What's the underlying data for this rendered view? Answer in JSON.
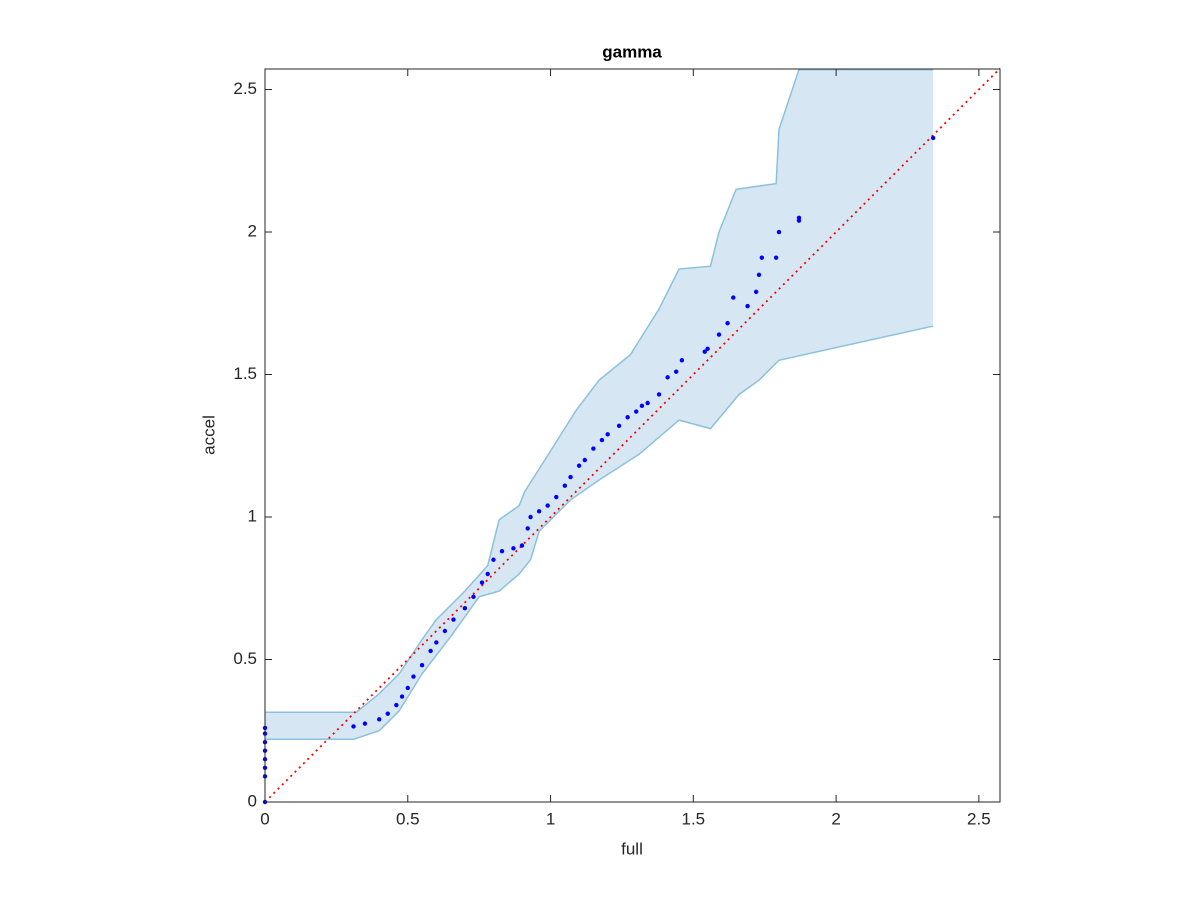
{
  "chart_data": {
    "type": "scatter",
    "title": "gamma",
    "x_label": "full",
    "y_label": "accel",
    "xlim": [
      0,
      2.574
    ],
    "ylim": [
      0,
      2.572
    ],
    "xticks": [
      0,
      0.5,
      1,
      1.5,
      2,
      2.5
    ],
    "yticks": [
      0,
      0.5,
      1,
      1.5,
      2,
      2.5
    ],
    "band_color": "#d6e7f3",
    "band_edge_color": "#8cc0dc",
    "band_upper": {
      "x": [
        0,
        0.32,
        0.4,
        0.47,
        0.55,
        0.6,
        0.7,
        0.78,
        0.82,
        0.89,
        0.91,
        0.98,
        1.09,
        1.17,
        1.28,
        1.38,
        1.45,
        1.56,
        1.59,
        1.65,
        1.79,
        1.8,
        1.87,
        2.34
      ],
      "y": [
        0.315,
        0.315,
        0.38,
        0.45,
        0.57,
        0.64,
        0.74,
        0.83,
        0.99,
        1.04,
        1.09,
        1.2,
        1.375,
        1.48,
        1.57,
        1.73,
        1.87,
        1.88,
        2.0,
        2.15,
        2.17,
        2.36,
        2.57,
        2.57
      ]
    },
    "band_lower": {
      "x": [
        0,
        0.31,
        0.4,
        0.47,
        0.55,
        0.65,
        0.75,
        0.82,
        0.89,
        0.93,
        0.96,
        1.07,
        1.17,
        1.31,
        1.45,
        1.56,
        1.66,
        1.73,
        1.8,
        2.34
      ],
      "y": [
        0.22,
        0.22,
        0.25,
        0.32,
        0.45,
        0.58,
        0.72,
        0.74,
        0.8,
        0.85,
        0.95,
        1.06,
        1.13,
        1.22,
        1.34,
        1.31,
        1.43,
        1.48,
        1.55,
        1.67
      ]
    },
    "reference_line": {
      "x": [
        0,
        2.574
      ],
      "y": [
        0,
        2.574
      ],
      "color": "#ff0000"
    },
    "points": {
      "color": "#0000ff",
      "x": [
        0,
        0,
        0,
        0,
        0,
        0,
        0,
        0,
        0.31,
        0.35,
        0.4,
        0.43,
        0.46,
        0.48,
        0.5,
        0.52,
        0.55,
        0.58,
        0.6,
        0.63,
        0.66,
        0.7,
        0.73,
        0.76,
        0.78,
        0.8,
        0.83,
        0.87,
        0.9,
        0.92,
        0.93,
        0.96,
        0.99,
        1.02,
        1.05,
        1.07,
        1.1,
        1.12,
        1.15,
        1.18,
        1.2,
        1.24,
        1.27,
        1.3,
        1.32,
        1.34,
        1.38,
        1.41,
        1.44,
        1.46,
        1.54,
        1.55,
        1.59,
        1.62,
        1.64,
        1.69,
        1.72,
        1.73,
        1.74,
        1.79,
        1.8,
        1.87,
        1.87,
        2.34
      ],
      "y": [
        0,
        0.09,
        0.12,
        0.15,
        0.18,
        0.21,
        0.24,
        0.26,
        0.265,
        0.275,
        0.29,
        0.31,
        0.34,
        0.37,
        0.4,
        0.44,
        0.48,
        0.53,
        0.56,
        0.6,
        0.64,
        0.68,
        0.72,
        0.77,
        0.8,
        0.85,
        0.88,
        0.89,
        0.9,
        0.96,
        1.0,
        1.02,
        1.04,
        1.07,
        1.11,
        1.14,
        1.18,
        1.2,
        1.24,
        1.27,
        1.29,
        1.32,
        1.35,
        1.37,
        1.39,
        1.4,
        1.43,
        1.49,
        1.51,
        1.55,
        1.58,
        1.59,
        1.64,
        1.68,
        1.77,
        1.74,
        1.79,
        1.85,
        1.91,
        1.91,
        2.0,
        2.04,
        2.05,
        2.33
      ]
    }
  }
}
